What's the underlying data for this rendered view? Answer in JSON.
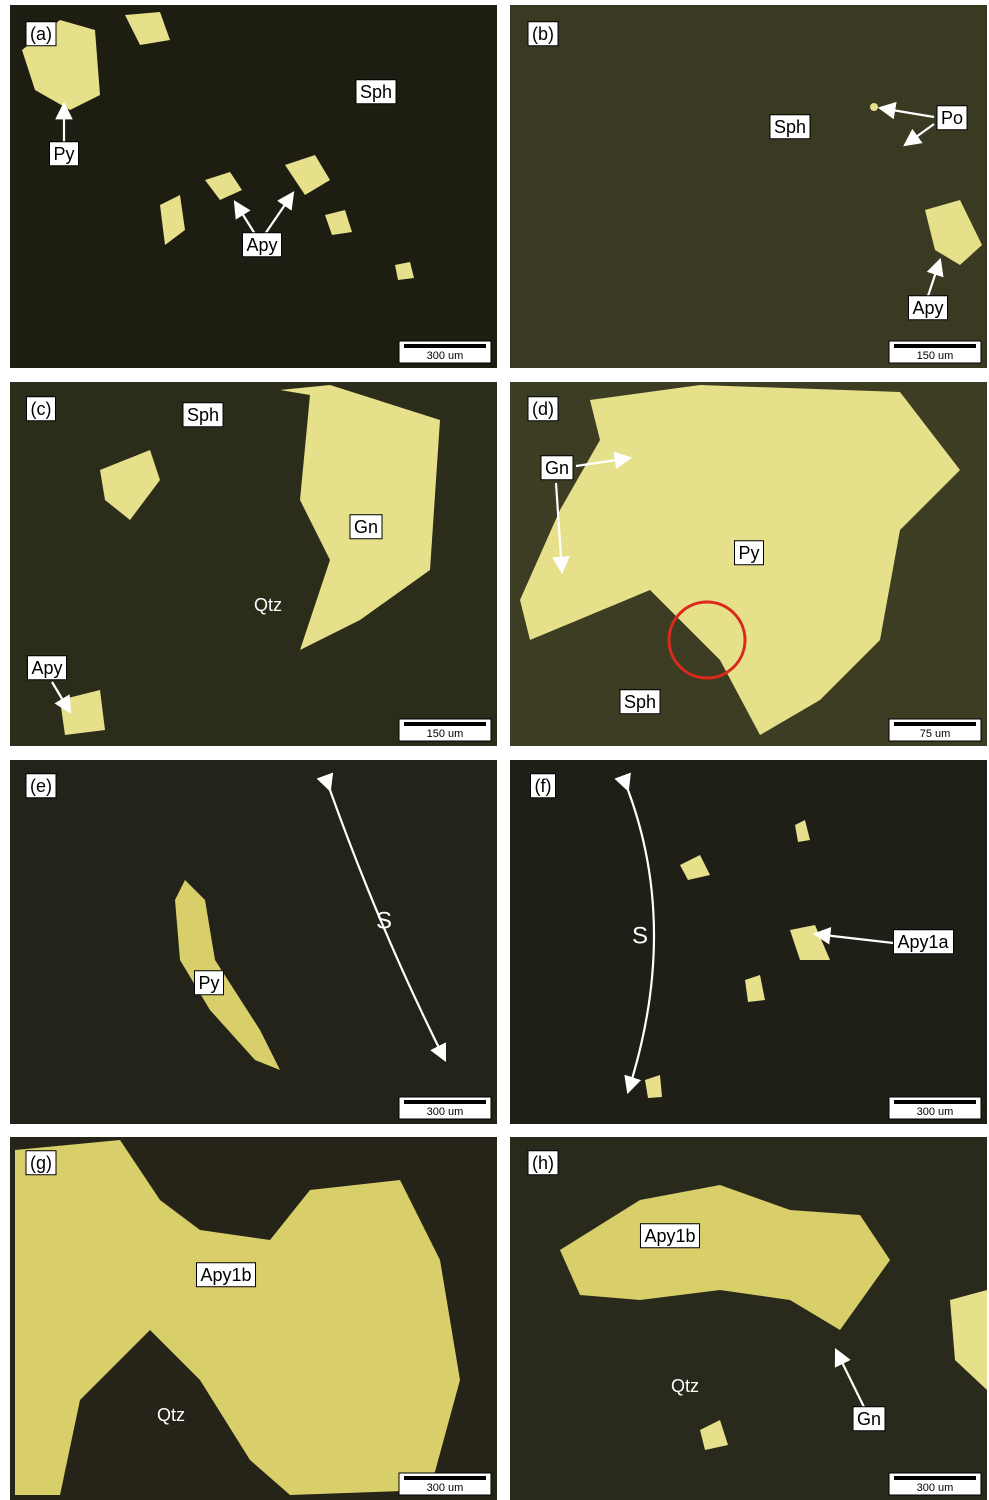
{
  "panels": [
    {
      "label": "(a)",
      "scale_bar": "300 um",
      "annotations": [
        "Py",
        "Sph",
        "Apy"
      ]
    },
    {
      "label": "(b)",
      "scale_bar": "150 um",
      "annotations": [
        "Po",
        "Sph",
        "Apy"
      ]
    },
    {
      "label": "(c)",
      "scale_bar": "150 um",
      "annotations": [
        "Sph",
        "Gn",
        "Qtz",
        "Apy"
      ]
    },
    {
      "label": "(d)",
      "scale_bar": "75 um",
      "annotations": [
        "Gn",
        "Py",
        "Sph"
      ]
    },
    {
      "label": "(e)",
      "scale_bar": "300 um",
      "annotations": [
        "S",
        "Py"
      ]
    },
    {
      "label": "(f)",
      "scale_bar": "300 um",
      "annotations": [
        "S",
        "Apy1a"
      ]
    },
    {
      "label": "(g)",
      "scale_bar": "300 um",
      "annotations": [
        "Apy1b",
        "Qtz"
      ]
    },
    {
      "label": "(h)",
      "scale_bar": "300 um",
      "annotations": [
        "Apy1b",
        "Qtz",
        "Gn"
      ]
    }
  ]
}
